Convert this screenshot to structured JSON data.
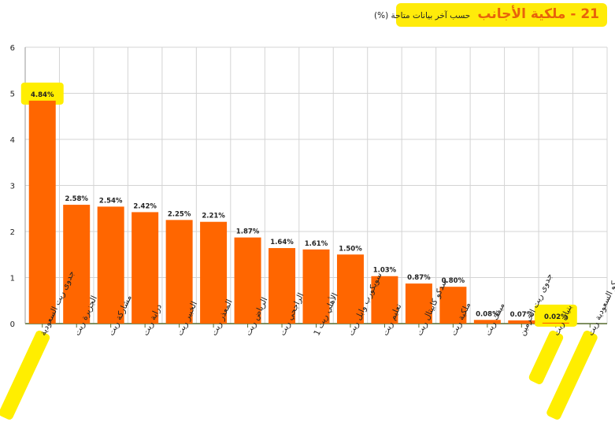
{
  "title": {
    "main": "21 - ملكية الأجانب",
    "sub": "حسب آخر بيانات متاحة (%)"
  },
  "chart_data": {
    "type": "bar",
    "categories": [
      "جدوى ريت السعودية",
      "الجزيرة ريت",
      "مشاركة ريت",
      "دراية ريت",
      "الخبير ريت",
      "المعذر ريت",
      "الرياض ريت",
      "الراجحي ريت",
      "الأهلي ريت 1",
      "سويكورب وابل ريت",
      "تعليم ريت",
      "سدكو كابيتال ريت",
      "ملكية ريت",
      "ميفك ريت",
      "جدوى ريت الحرمين",
      "بنيان ريت",
      "سيكو السعودية ريت"
    ],
    "values": [
      4.84,
      2.58,
      2.54,
      2.42,
      2.25,
      2.21,
      1.87,
      1.64,
      1.61,
      1.5,
      1.03,
      0.87,
      0.8,
      0.08,
      0.07,
      0.02,
      0
    ],
    "value_labels": [
      "4.84%",
      "2.58%",
      "2.54%",
      "2.42%",
      "2.25%",
      "2.21%",
      "1.87%",
      "1.64%",
      "1.61%",
      "1.50%",
      "1.03%",
      "0.87%",
      "0.80%",
      "0.08%",
      "0.07%",
      "0.02%",
      ""
    ],
    "highlighted": [
      0,
      15,
      16
    ],
    "yticks": [
      "0",
      "1",
      "2",
      "3",
      "4",
      "5",
      "6"
    ],
    "ylim": [
      0,
      6
    ],
    "grid": true,
    "colors": {
      "bar": "#ff6600",
      "highlight": "#ffee00",
      "axis": "#556b2f",
      "grid": "#d4d4d4"
    }
  }
}
